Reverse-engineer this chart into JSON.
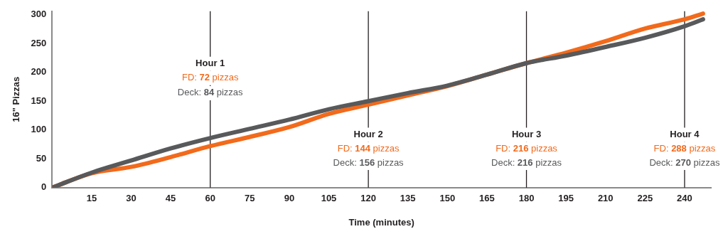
{
  "chart_data": {
    "type": "line",
    "xlabel": "Time (minutes)",
    "ylabel": "16\" Pizzas",
    "xlim": [
      0,
      250
    ],
    "xticks": [
      15,
      30,
      45,
      60,
      75,
      90,
      105,
      120,
      135,
      150,
      165,
      180,
      195,
      210,
      225,
      240
    ],
    "ylim": [
      0,
      306
    ],
    "yticks": [
      0,
      50,
      100,
      150,
      200,
      250,
      300
    ],
    "grid": false,
    "legend": false,
    "marker": "none",
    "line_style": "solid",
    "series": [
      {
        "color": "#f26a1b",
        "x": [
          0,
          15,
          30,
          45,
          60,
          75,
          90,
          105,
          120,
          135,
          150,
          165,
          180,
          195,
          210,
          225,
          240,
          247
        ],
        "values": [
          0,
          25,
          36,
          53,
          72,
          88,
          105,
          128,
          144,
          160,
          176,
          196,
          216,
          234,
          254,
          276,
          292,
          302
        ]
      },
      {
        "color": "#58595b",
        "x": [
          0,
          15,
          30,
          45,
          60,
          75,
          90,
          105,
          120,
          135,
          150,
          165,
          180,
          195,
          210,
          225,
          240,
          247
        ],
        "values": [
          0,
          26,
          47,
          68,
          86,
          102,
          118,
          136,
          150,
          164,
          177,
          196,
          216,
          229,
          244,
          260,
          280,
          292
        ]
      }
    ],
    "ref_lines": [
      {
        "axis": "x",
        "value": 60,
        "label": "Hour 1",
        "color": "#231f20"
      },
      {
        "axis": "x",
        "value": 120,
        "label": "Hour 2",
        "color": "#231f20"
      },
      {
        "axis": "x",
        "value": 180,
        "label": "Hour 3",
        "color": "#231f20"
      },
      {
        "axis": "x",
        "value": 240,
        "label": "Hour 4",
        "color": "#231f20"
      }
    ],
    "annotations": [
      {
        "text": "FD: 72 pizzas",
        "x": 60,
        "y": 190
      },
      {
        "text": "Deck: 84 pizzas",
        "x": 60,
        "y": 164
      },
      {
        "text": "FD: 144 pizzas",
        "x": 120,
        "y": 67
      },
      {
        "text": "Deck: 156 pizzas",
        "x": 120,
        "y": 43
      },
      {
        "text": "FD: 216 pizzas",
        "x": 180,
        "y": 67
      },
      {
        "text": "Deck: 216 pizzas",
        "x": 180,
        "y": 43
      },
      {
        "text": "FD: 288 pizzas",
        "x": 240,
        "y": 67
      },
      {
        "text": "Deck: 270 pizzas",
        "x": 240,
        "y": 43
      }
    ]
  }
}
